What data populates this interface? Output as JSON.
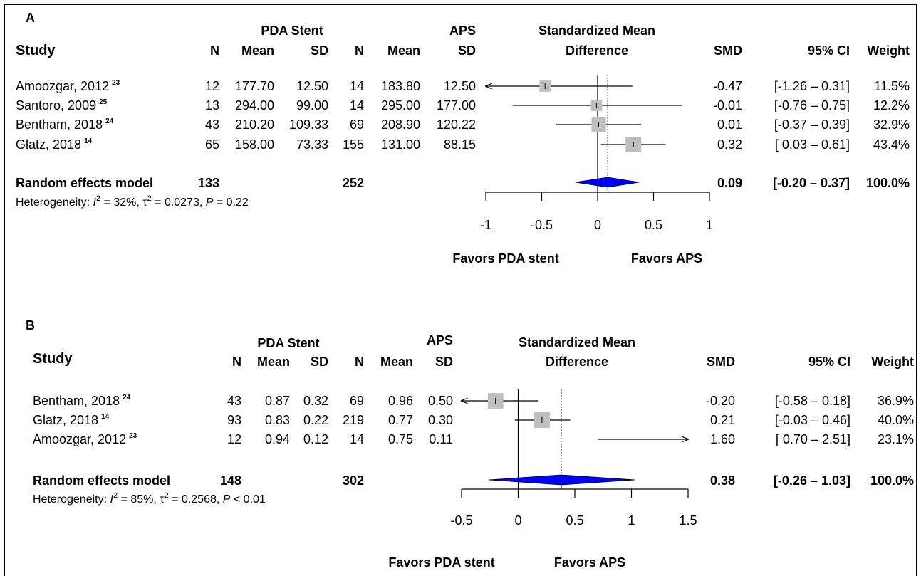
{
  "chart_data": [
    {
      "type": "forest",
      "panel": "A",
      "columns": {
        "study": "Study",
        "group1": "PDA Stent",
        "group2": "APS",
        "n": "N",
        "mean": "Mean",
        "sd": "SD",
        "effect_header": [
          "Standardized Mean",
          "Difference"
        ],
        "smd": "SMD",
        "ci": "95% CI",
        "weight": "Weight"
      },
      "xlim": [
        -1,
        1
      ],
      "ticks": [
        -1,
        -0.5,
        0,
        0.5,
        1
      ],
      "tick_labels": [
        "-1",
        "-0.5",
        "0",
        "0.5",
        "1"
      ],
      "favors_left": "Favors PDA stent",
      "favors_right": "Favors APS",
      "studies": [
        {
          "name": "Amoozgar, 2012",
          "ref": "23",
          "n1": "12",
          "mean1": "177.70",
          "sd1": "12.50",
          "n2": "14",
          "mean2": "183.80",
          "sd2": "12.50",
          "smd": -0.47,
          "lo": -1.26,
          "hi": 0.31,
          "smd_text": "-0.47",
          "ci_text": "[-1.26 – 0.31]",
          "weight_text": "11.5%",
          "weight": 11.5
        },
        {
          "name": "Santoro, 2009",
          "ref": "25",
          "n1": "13",
          "mean1": "294.00",
          "sd1": "99.00",
          "n2": "14",
          "mean2": "295.00",
          "sd2": "177.00",
          "smd": -0.01,
          "lo": -0.76,
          "hi": 0.75,
          "smd_text": "-0.01",
          "ci_text": "[-0.76 – 0.75]",
          "weight_text": "12.2%",
          "weight": 12.2
        },
        {
          "name": "Bentham, 2018",
          "ref": "24",
          "n1": "43",
          "mean1": "210.20",
          "sd1": "109.33",
          "n2": "69",
          "mean2": "208.90",
          "sd2": "120.22",
          "smd": 0.01,
          "lo": -0.37,
          "hi": 0.39,
          "smd_text": "0.01",
          "ci_text": "[-0.37 – 0.39]",
          "weight_text": "32.9%",
          "weight": 32.9
        },
        {
          "name": "Glatz, 2018",
          "ref": "14",
          "n1": "65",
          "mean1": "158.00",
          "sd1": "73.33",
          "n2": "155",
          "mean2": "131.00",
          "sd2": "88.15",
          "smd": 0.32,
          "lo": 0.03,
          "hi": 0.61,
          "smd_text": "0.32",
          "ci_text": "[ 0.03 – 0.61]",
          "weight_text": "43.4%",
          "weight": 43.4
        }
      ],
      "pooled": {
        "label": "Random effects model",
        "n1": "133",
        "n2": "252",
        "smd": 0.09,
        "lo": -0.2,
        "hi": 0.37,
        "smd_text": "0.09",
        "ci_text": "[-0.20 – 0.37]",
        "weight_text": "100.0%"
      },
      "heterogeneity": {
        "prefix": "Heterogeneity: ",
        "i2": "2",
        "i2_value": " = 32%, ",
        "tau2": "2",
        "tau2_value": " = 0.0273, ",
        "p": "P",
        "p_value": " = 0.22"
      }
    },
    {
      "type": "forest",
      "panel": "B",
      "columns": {
        "study": "Study",
        "group1": "PDA Stent",
        "group2": "APS",
        "n": "N",
        "mean": "Mean",
        "sd": "SD",
        "effect_header": [
          "Standardized Mean",
          "Difference"
        ],
        "smd": "SMD",
        "ci": "95% CI",
        "weight": "Weight"
      },
      "xlim": [
        -0.5,
        1.5
      ],
      "ticks": [
        -0.5,
        0,
        0.5,
        1,
        1.5
      ],
      "tick_labels": [
        "-0.5",
        "0",
        "0.5",
        "1",
        "1.5"
      ],
      "favors_left": "Favors PDA stent",
      "favors_right": "Favors APS",
      "studies": [
        {
          "name": "Bentham, 2018",
          "ref": "24",
          "n1": "43",
          "mean1": "0.87",
          "sd1": "0.32",
          "n2": "69",
          "mean2": "0.96",
          "sd2": "0.50",
          "smd": -0.2,
          "lo": -0.58,
          "hi": 0.18,
          "smd_text": "-0.20",
          "ci_text": "[-0.58 – 0.18]",
          "weight_text": "36.9%",
          "weight": 36.9
        },
        {
          "name": "Glatz, 2018",
          "ref": "14",
          "n1": "93",
          "mean1": "0.83",
          "sd1": "0.22",
          "n2": "219",
          "mean2": "0.77",
          "sd2": "0.30",
          "smd": 0.21,
          "lo": -0.03,
          "hi": 0.46,
          "smd_text": "0.21",
          "ci_text": "[-0.03 – 0.46]",
          "weight_text": "40.0%",
          "weight": 40.0
        },
        {
          "name": "Amoozgar, 2012",
          "ref": "23",
          "n1": "12",
          "mean1": "0.94",
          "sd1": "0.12",
          "n2": "14",
          "mean2": "0.75",
          "sd2": "0.11",
          "smd": 1.6,
          "lo": 0.7,
          "hi": 2.51,
          "smd_text": "1.60",
          "ci_text": "[ 0.70 – 2.51]",
          "weight_text": "23.1%",
          "weight": 23.1
        }
      ],
      "pooled": {
        "label": "Random effects model",
        "n1": "148",
        "n2": "302",
        "smd": 0.38,
        "lo": -0.26,
        "hi": 1.03,
        "smd_text": "0.38",
        "ci_text": "[-0.26 – 1.03]",
        "weight_text": "100.0%"
      },
      "heterogeneity": {
        "prefix": "Heterogeneity: ",
        "i2": "2",
        "i2_value": " = 85%, ",
        "tau2": "2",
        "tau2_value": " = 0.2568, ",
        "p": "P",
        "p_value": " < 0.01"
      }
    }
  ],
  "colors": {
    "box": "#bfbfbf",
    "diamond": "#0000ff",
    "line": "#000000"
  }
}
